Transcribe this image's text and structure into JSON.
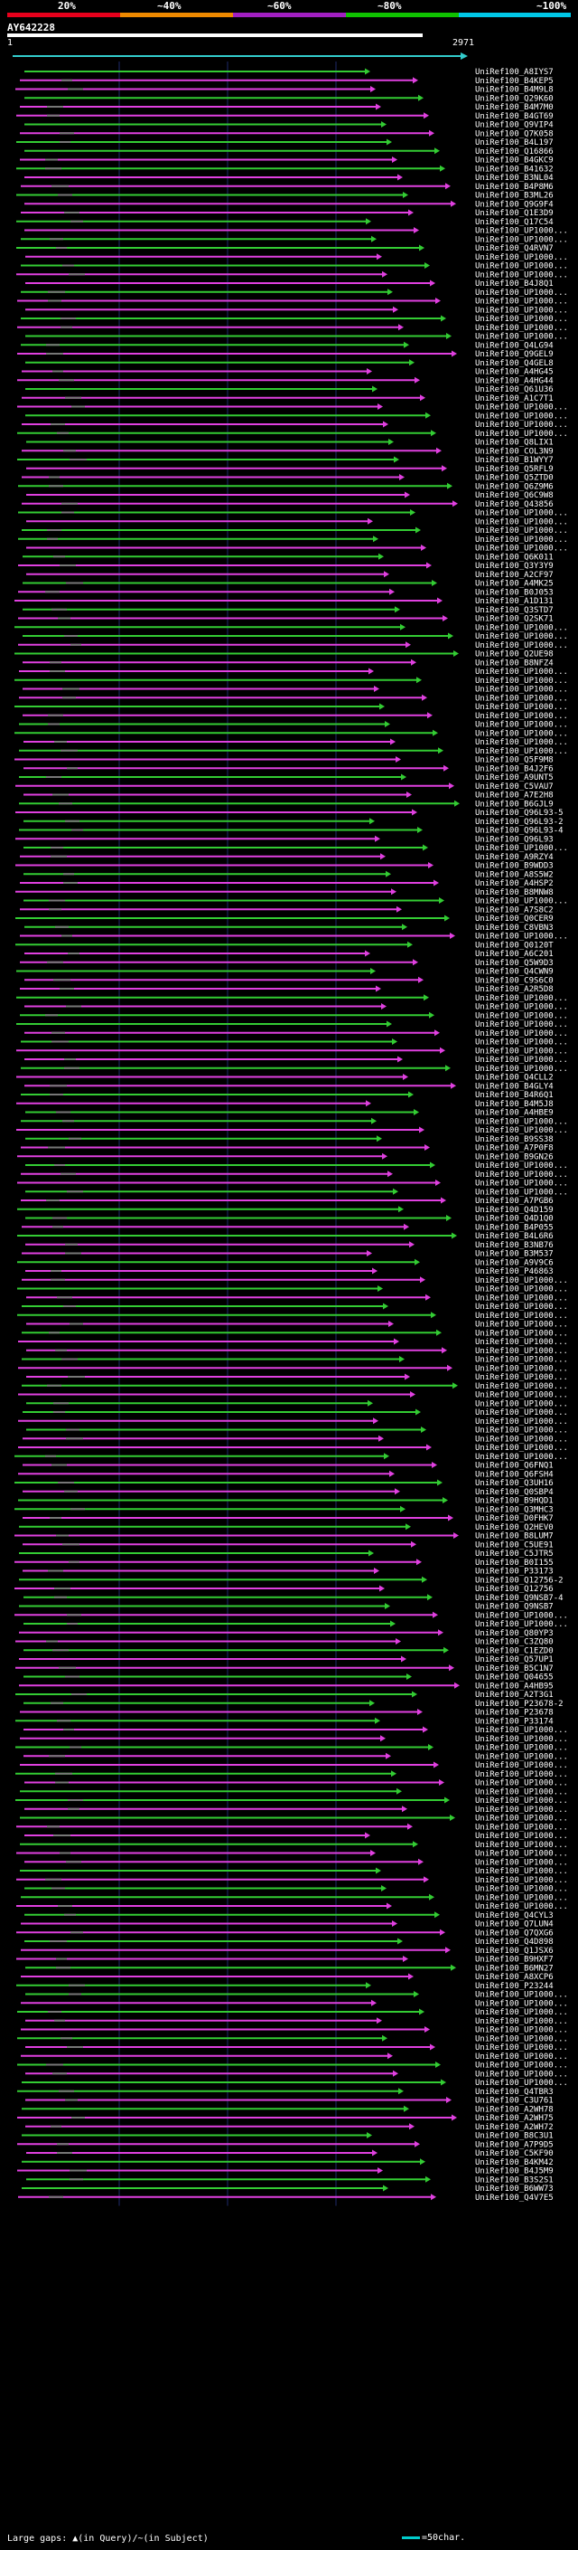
{
  "legend": {
    "labels": [
      "20%",
      "~40%",
      "~60%",
      "~80%",
      "~100%"
    ],
    "colors": [
      "#e8001c",
      "#ef8a00",
      "#a21fc2",
      "#0fc200",
      "#00c8e8"
    ]
  },
  "query": {
    "name": "AY642228",
    "start": "1",
    "end": "2971"
  },
  "hit_style": {
    "magenta": "#e040e0",
    "green": "#33cc33",
    "cyan": "#33cccc",
    "grid": "#1e2a6a",
    "gap": "#777777"
  },
  "hits": [
    "UniRef100_A8IYS7",
    "UniRef100_B4KEP5",
    "UniRef100_B4M9L8",
    "UniRef100_Q29K60",
    "UniRef100_B4M7M0",
    "UniRef100_B4GT69",
    "UniRef100_Q9VIP4",
    "UniRef100_Q7K058",
    "UniRef100_B4L197",
    "UniRef100_Q16866",
    "UniRef100_B4GKC9",
    "UniRef100_B41632",
    "UniRef100_B3NL04",
    "UniRef100_B4P8M6",
    "UniRef100_B3ML26",
    "UniRef100_Q9G9F4",
    "UniRef100_Q1E3D9",
    "UniRef100_Q17C54",
    "UniRef100_UP1000...",
    "UniRef100_UP1000...",
    "UniRef100_Q4RVN7",
    "UniRef100_UP1000...",
    "UniRef100_UP1000...",
    "UniRef100_UP1000...",
    "UniRef100_B4J8Q1",
    "UniRef100_UP1000...",
    "UniRef100_UP1000...",
    "UniRef100_UP1000...",
    "UniRef100_UP1000...",
    "UniRef100_UP1000...",
    "UniRef100_UP1000...",
    "UniRef100_Q4LG94",
    "UniRef100_Q9GEL9",
    "UniRef100_Q4GEL8",
    "UniRef100_A4HG45",
    "UniRef100_A4HG44",
    "UniRef100_Q61U36",
    "UniRef100_A1C7T1",
    "UniRef100_UP1000...",
    "UniRef100_UP1000...",
    "UniRef100_UP1000...",
    "UniRef100_UP1000...",
    "UniRef100_Q8LIX1",
    "UniRef100_COL3N9",
    "UniRef100_B1WYY7",
    "UniRef100_Q5RFL9",
    "UniRef100_Q5ZTD0",
    "UniRef100_Q6Z9M6",
    "UniRef100_Q6C9W8",
    "UniRef100_Q43856",
    "UniRef100_UP1000...",
    "UniRef100_UP1000...",
    "UniRef100_UP1000...",
    "UniRef100_UP1000...",
    "UniRef100_UP1000...",
    "UniRef100_Q6K011",
    "UniRef100_Q3Y3Y9",
    "UniRef100_A2CF97",
    "UniRef100_A4MK25",
    "UniRef100_B0J053",
    "UniRef100_A1D131",
    "UniRef100_Q3STD7",
    "UniRef100_Q2SK71",
    "UniRef100_UP1000...",
    "UniRef100_UP1000...",
    "UniRef100_UP1000...",
    "UniRef100_Q2UE98",
    "UniRef100_B8NFZ4",
    "UniRef100_UP1000...",
    "UniRef100_UP1000...",
    "UniRef100_UP1000...",
    "UniRef100_UP1000...",
    "UniRef100_UP1000...",
    "UniRef100_UP1000...",
    "UniRef100_UP1000...",
    "UniRef100_UP1000...",
    "UniRef100_UP1000...",
    "UniRef100_UP1000...",
    "UniRef100_Q5F9M8",
    "UniRef100_B4J2F6",
    "UniRef100_A9UNT5",
    "UniRef100_C5VAU7",
    "UniRef100_A7E2H8",
    "UniRef100_B6GJL9",
    "UniRef100_Q96L93-5",
    "UniRef100_Q96L93-2",
    "UniRef100_Q96L93-4",
    "UniRef100_Q96L93",
    "UniRef100_UP1000...",
    "UniRef100_A9RZY4",
    "UniRef100_B9WDD3",
    "UniRef100_A8S5W2",
    "UniRef100_A4HSP2",
    "UniRef100_B8MNW8",
    "UniRef100_UP1000...",
    "UniRef100_A7S8C2",
    "UniRef100_Q0CER9",
    "UniRef100_C8VBN3",
    "UniRef100_UP1000...",
    "UniRef100_Q0120T",
    "UniRef100_A6C201",
    "UniRef100_Q5W9D3",
    "UniRef100_Q4CWN9",
    "UniRef100_C9S6C0",
    "UniRef100_A2R5D8",
    "UniRef100_UP1000...",
    "UniRef100_UP1000...",
    "UniRef100_UP1000...",
    "UniRef100_UP1000...",
    "UniRef100_UP1000...",
    "UniRef100_UP1000...",
    "UniRef100_UP1000...",
    "UniRef100_UP1000...",
    "UniRef100_UP1000...",
    "UniRef100_Q4CLL2",
    "UniRef100_B4GLY4",
    "UniRef100_B4R6Q1",
    "UniRef100_B4M5J8",
    "UniRef100_A4HBE9",
    "UniRef100_UP1000...",
    "UniRef100_UP1000...",
    "UniRef100_B9SS38",
    "UniRef100_A7P0F8",
    "UniRef100_B9GN26",
    "UniRef100_UP1000...",
    "UniRef100_UP1000...",
    "UniRef100_UP1000...",
    "UniRef100_UP1000...",
    "UniRef100_A7PGB6",
    "UniRef100_Q4D159",
    "UniRef100_Q4D1Q0",
    "UniRef100_B4P055",
    "UniRef100_B4L6R6",
    "UniRef100_B3NB76",
    "UniRef100_B3M537",
    "UniRef100_A9V9C6",
    "UniRef100_P46863",
    "UniRef100_UP1000...",
    "UniRef100_UP1000...",
    "UniRef100_UP1000...",
    "UniRef100_UP1000...",
    "UniRef100_UP1000...",
    "UniRef100_UP1000...",
    "UniRef100_UP1000...",
    "UniRef100_UP1000...",
    "UniRef100_UP1000...",
    "UniRef100_UP1000...",
    "UniRef100_UP1000...",
    "UniRef100_UP1000...",
    "UniRef100_UP1000...",
    "UniRef100_UP1000...",
    "UniRef100_UP1000...",
    "UniRef100_UP1000...",
    "UniRef100_UP1000...",
    "UniRef100_UP1000...",
    "UniRef100_UP1000...",
    "UniRef100_UP1000...",
    "UniRef100_UP1000...",
    "UniRef100_Q6FNQ1",
    "UniRef100_Q6FSH4",
    "UniRef100_Q3UH16",
    "UniRef100_Q0SBP4",
    "UniRef100_B9HQD1",
    "UniRef100_Q3MHC3",
    "UniRef100_D0FHK7",
    "UniRef100_Q2HEV0",
    "UniRef100_B8LUM7",
    "UniRef100_C5UE91",
    "UniRef100_C5JTR5",
    "UniRef100_B0I155",
    "UniRef100_P33173",
    "UniRef100_Q12756-2",
    "UniRef100_Q12756",
    "UniRef100_Q9NSB7-4",
    "UniRef100_Q9NSB7",
    "UniRef100_UP1000...",
    "UniRef100_UP1000...",
    "UniRef100_Q80YP3",
    "UniRef100_C3ZQ80",
    "UniRef100_C1EZD0",
    "UniRef100_Q57UP1",
    "UniRef100_B5C1N7",
    "UniRef100_Q04655",
    "UniRef100_A4HB95",
    "UniRef100_A2T3G1",
    "UniRef100_P23678-2",
    "UniRef100_P23678",
    "UniRef100_P33174",
    "UniRef100_UP1000...",
    "UniRef100_UP1000...",
    "UniRef100_UP1000...",
    "UniRef100_UP1000...",
    "UniRef100_UP1000...",
    "UniRef100_UP1000...",
    "UniRef100_UP1000...",
    "UniRef100_UP1000...",
    "UniRef100_UP1000...",
    "UniRef100_UP1000...",
    "UniRef100_UP1000...",
    "UniRef100_UP1000...",
    "UniRef100_UP1000...",
    "UniRef100_UP1000...",
    "UniRef100_UP1000...",
    "UniRef100_UP1000...",
    "UniRef100_UP1000...",
    "UniRef100_UP1000...",
    "UniRef100_UP1000...",
    "UniRef100_UP1000...",
    "UniRef100_UP1000...",
    "UniRef100_Q4CYL3",
    "UniRef100_Q7LUN4",
    "UniRef100_Q7QXG6",
    "UniRef100_Q4D898",
    "UniRef100_Q1JSX6",
    "UniRef100_B9HXF7",
    "UniRef100_B6MN27",
    "UniRef100_A8XCP6",
    "UniRef100_P23244",
    "UniRef100_UP1000...",
    "UniRef100_UP1000...",
    "UniRef100_UP1000...",
    "UniRef100_UP1000...",
    "UniRef100_UP1000...",
    "UniRef100_UP1000...",
    "UniRef100_UP1000...",
    "UniRef100_UP1000...",
    "UniRef100_UP1000...",
    "UniRef100_UP1000...",
    "UniRef100_UP1000...",
    "UniRef100_Q4TBR3",
    "UniRef100_C3U761",
    "UniRef100_A2WH78",
    "UniRef100_A2WH75",
    "UniRef100_A2WH72",
    "UniRef100_B8C3U1",
    "UniRef100_A7P9D5",
    "UniRef100_C5KF90",
    "UniRef100_B4KM42",
    "UniRef100_B4J5M9",
    "UniRef100_B3S2S1",
    "UniRef100_B6WW73",
    "UniRef100_Q4V7E5"
  ],
  "footer": {
    "text": "Large gaps: ▲(in Query)/~(in Subject)",
    "scale_label": "=50char."
  }
}
